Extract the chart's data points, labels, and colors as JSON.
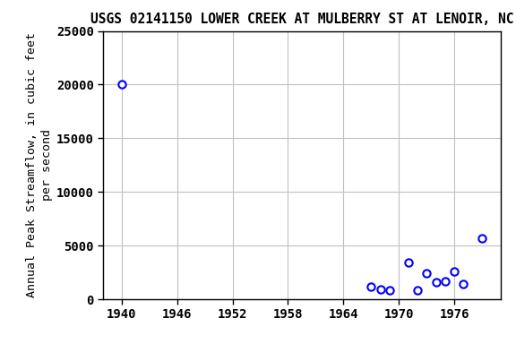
{
  "title": "USGS 02141150 LOWER CREEK AT MULBERRY ST AT LENOIR, NC",
  "ylabel": "Annual Peak Streamflow, in cubic feet\nper second",
  "years": [
    1940,
    1967,
    1968,
    1969,
    1971,
    1972,
    1973,
    1974,
    1975,
    1976,
    1977,
    1979
  ],
  "flows": [
    20000,
    1200,
    900,
    800,
    3400,
    800,
    2400,
    1600,
    1700,
    2600,
    1400,
    5700
  ],
  "xlim": [
    1938,
    1981
  ],
  "ylim": [
    0,
    25000
  ],
  "xticks": [
    1940,
    1946,
    1952,
    1958,
    1964,
    1970,
    1976
  ],
  "yticks": [
    0,
    5000,
    10000,
    15000,
    20000,
    25000
  ],
  "marker_color": "blue",
  "marker_facecolor": "white",
  "marker_size": 6,
  "grid_color": "#c0c0c0",
  "bg_color": "white",
  "title_fontsize": 10.5,
  "label_fontsize": 9.5,
  "tick_fontsize": 10
}
